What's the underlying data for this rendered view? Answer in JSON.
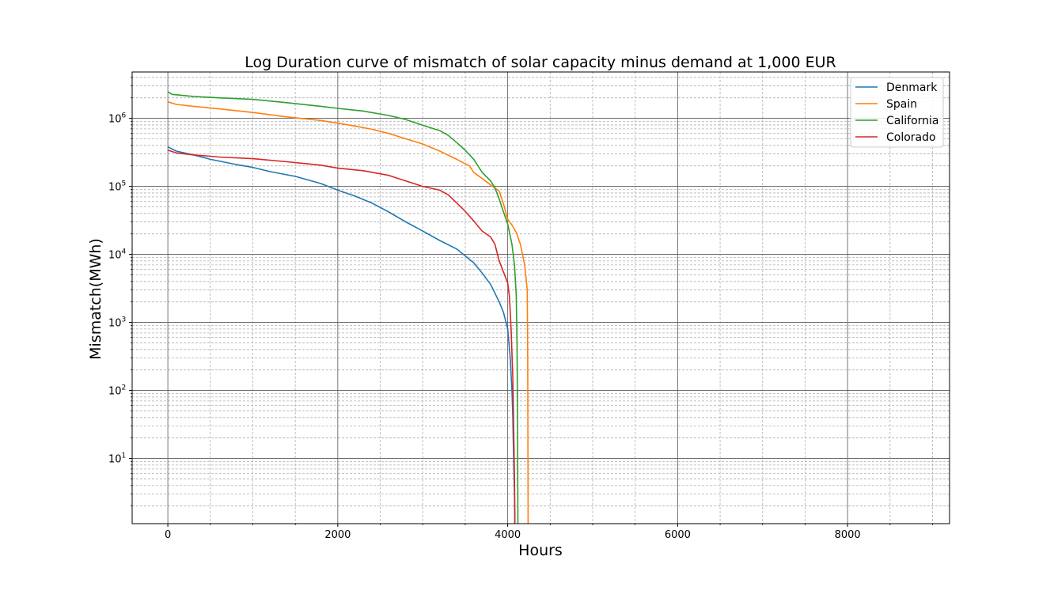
{
  "chart_data": {
    "type": "line",
    "title": "Log Duration curve of mismatch of solar capacity minus demand at 1,000 EUR",
    "xlabel": "Hours",
    "ylabel": "Mismatch(MWh)",
    "xlim": [
      -420,
      9200
    ],
    "ylim": [
      1.1,
      4800000
    ],
    "yscale": "log",
    "grid": true,
    "legend": "top-right",
    "x_ticks": [
      {
        "value": 0,
        "label": "0"
      },
      {
        "value": 2000,
        "label": "2000"
      },
      {
        "value": 4000,
        "label": "4000"
      },
      {
        "value": 6000,
        "label": "6000"
      },
      {
        "value": 8000,
        "label": "8000"
      }
    ],
    "y_ticks": [
      {
        "value": 10,
        "base": "10",
        "exp": "1"
      },
      {
        "value": 100,
        "base": "10",
        "exp": "2"
      },
      {
        "value": 1000,
        "base": "10",
        "exp": "3"
      },
      {
        "value": 10000,
        "base": "10",
        "exp": "4"
      },
      {
        "value": 100000,
        "base": "10",
        "exp": "5"
      },
      {
        "value": 1000000,
        "base": "10",
        "exp": "6"
      }
    ],
    "series": [
      {
        "name": "Denmark",
        "color": "#1f77b4",
        "x": [
          0,
          100,
          300,
          500,
          800,
          1000,
          1200,
          1500,
          1800,
          2000,
          2200,
          2400,
          2600,
          2800,
          3000,
          3200,
          3400,
          3600,
          3700,
          3800,
          3900,
          3950,
          4000,
          4030,
          4050,
          4060,
          4070,
          4080,
          4085
        ],
        "y": [
          380000,
          330000,
          290000,
          250000,
          210000,
          190000,
          165000,
          140000,
          110000,
          88000,
          72000,
          57000,
          42000,
          30000,
          22000,
          16000,
          12000,
          7500,
          5300,
          3600,
          2000,
          1400,
          800,
          300,
          100,
          40,
          10,
          3,
          1.1
        ]
      },
      {
        "name": "Spain",
        "color": "#ff7f0e",
        "x": [
          0,
          100,
          300,
          600,
          1000,
          1400,
          1800,
          2000,
          2200,
          2400,
          2600,
          2800,
          3000,
          3200,
          3400,
          3550,
          3600,
          3700,
          3800,
          3900,
          3950,
          4000,
          4050,
          4100,
          4150,
          4200,
          4230,
          4235,
          4238,
          4240
        ],
        "y": [
          1750000,
          1600000,
          1500000,
          1380000,
          1220000,
          1050000,
          930000,
          850000,
          770000,
          690000,
          600000,
          500000,
          420000,
          330000,
          250000,
          200000,
          160000,
          130000,
          105000,
          85000,
          55000,
          33000,
          27000,
          21000,
          14000,
          7000,
          3000,
          300,
          10,
          1.1
        ]
      },
      {
        "name": "California",
        "color": "#2ca02c",
        "x": [
          0,
          50,
          300,
          600,
          1000,
          1400,
          1800,
          2000,
          2300,
          2600,
          2800,
          3000,
          3200,
          3300,
          3400,
          3500,
          3600,
          3700,
          3800,
          3850,
          3900,
          3950,
          4000,
          4050,
          4080,
          4100,
          4110,
          4115,
          4118,
          4120
        ],
        "y": [
          2450000,
          2250000,
          2100000,
          2000000,
          1900000,
          1700000,
          1500000,
          1400000,
          1280000,
          1100000,
          960000,
          790000,
          660000,
          560000,
          440000,
          340000,
          250000,
          160000,
          120000,
          95000,
          65000,
          42000,
          28000,
          14000,
          7000,
          2500,
          500,
          50,
          5,
          1.1
        ]
      },
      {
        "name": "Colorado",
        "color": "#d62728",
        "x": [
          0,
          100,
          300,
          600,
          1000,
          1400,
          1800,
          2000,
          2300,
          2600,
          2800,
          3000,
          3200,
          3300,
          3400,
          3500,
          3600,
          3650,
          3700,
          3800,
          3850,
          3900,
          3950,
          4000,
          4020,
          4040,
          4060,
          4070,
          4080,
          4085
        ],
        "y": [
          340000,
          310000,
          290000,
          270000,
          255000,
          230000,
          205000,
          185000,
          170000,
          145000,
          120000,
          100000,
          88000,
          75000,
          57000,
          43000,
          31000,
          26000,
          22000,
          18000,
          14000,
          8000,
          5500,
          3800,
          2400,
          800,
          150,
          30,
          5,
          1.1
        ]
      }
    ]
  }
}
